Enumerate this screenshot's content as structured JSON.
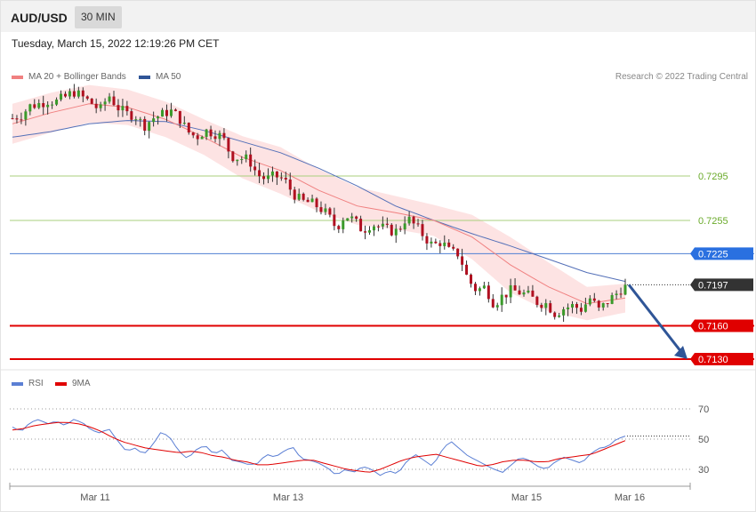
{
  "header": {
    "pair": "AUD/USD",
    "timeframe": "30 MIN",
    "timestamp": "Tuesday, March 15, 2022 12:19:26 PM CET"
  },
  "legend": {
    "ma20": {
      "label": "MA 20 + Bollinger Bands",
      "color": "#f08080"
    },
    "ma50": {
      "label": "MA 50",
      "color": "#2f5597"
    },
    "credit": "Research © 2022 Trading Central"
  },
  "rsi_legend": {
    "rsi": {
      "label": "RSI",
      "color": "#5b7fd4"
    },
    "ma9": {
      "label": "9MA",
      "color": "#e00000"
    }
  },
  "chart_data": [
    {
      "type": "candlestick",
      "ylim": [
        0.712,
        0.7395
      ],
      "x_labels": [
        "Mar 11",
        "Mar 13",
        "Mar 15",
        "Mar 16"
      ],
      "levels": [
        {
          "label": "0.7295",
          "value": 0.7295,
          "style": "green-thin"
        },
        {
          "label": "0.7255",
          "value": 0.7255,
          "style": "green-thin"
        },
        {
          "label": "0.7225",
          "value": 0.7225,
          "style": "blue"
        },
        {
          "label": "0.7197",
          "value": 0.7197,
          "style": "current"
        },
        {
          "label": "0.7160",
          "value": 0.716,
          "style": "red"
        },
        {
          "label": "0.7130",
          "value": 0.713,
          "style": "red"
        }
      ],
      "close_path": [
        0.7347,
        0.735,
        0.7358,
        0.736,
        0.7363,
        0.7362,
        0.7366,
        0.7371,
        0.7366,
        0.7361,
        0.7354,
        0.7368,
        0.7357,
        0.7351,
        0.735,
        0.734,
        0.7347,
        0.735,
        0.7354,
        0.7348,
        0.7335,
        0.733,
        0.7336,
        0.7334,
        0.733,
        0.7313,
        0.7311,
        0.731,
        0.7296,
        0.7292,
        0.7295,
        0.7292,
        0.728,
        0.7272,
        0.7271,
        0.7267,
        0.726,
        0.7248,
        0.726,
        0.7255,
        0.7246,
        0.7252,
        0.7249,
        0.7246,
        0.7245,
        0.7258,
        0.725,
        0.7241,
        0.7232,
        0.7236,
        0.7226,
        0.7225,
        0.7202,
        0.7192,
        0.7195,
        0.718,
        0.7187,
        0.7192,
        0.719,
        0.7187,
        0.7181,
        0.718,
        0.7171,
        0.7176,
        0.7178,
        0.7175,
        0.7185,
        0.7174,
        0.7182,
        0.7189,
        0.7197
      ],
      "ma20_path": [
        0.7342,
        0.7352,
        0.736,
        0.7357,
        0.7346,
        0.733,
        0.7312,
        0.73,
        0.7282,
        0.7268,
        0.7262,
        0.7255,
        0.724,
        0.7215,
        0.7195,
        0.718,
        0.7185
      ],
      "ma50_path": [
        0.733,
        0.7335,
        0.7342,
        0.7345,
        0.7344,
        0.7336,
        0.7326,
        0.7316,
        0.7302,
        0.7286,
        0.7268,
        0.7255,
        0.7243,
        0.7232,
        0.722,
        0.7208,
        0.72
      ],
      "bb_width_path": [
        0.0018,
        0.0018,
        0.0017,
        0.0016,
        0.0016,
        0.0016,
        0.0019,
        0.0021,
        0.0019,
        0.0017,
        0.0015,
        0.0014,
        0.002,
        0.0025,
        0.0022,
        0.0015,
        0.0013
      ],
      "projection": {
        "from": 0.7197,
        "to": 0.713
      }
    },
    {
      "type": "line",
      "ylim": [
        20,
        80
      ],
      "y_ticks": [
        {
          "label": "70",
          "value": 70
        },
        {
          "label": "50",
          "value": 50
        },
        {
          "label": "30",
          "value": 30
        }
      ],
      "series": [
        {
          "name": "RSI",
          "color": "#5b7fd4",
          "values": [
            58,
            55,
            61,
            63,
            60,
            62,
            59,
            63,
            61,
            56,
            54,
            57,
            49,
            42,
            44,
            40,
            46,
            55,
            51,
            42,
            37,
            43,
            46,
            40,
            43,
            36,
            35,
            33,
            34,
            40,
            38,
            42,
            45,
            37,
            36,
            34,
            31,
            26,
            30,
            28,
            32,
            30,
            26,
            29,
            27,
            35,
            40,
            36,
            32,
            42,
            49,
            44,
            39,
            36,
            33,
            30,
            28,
            33,
            38,
            36,
            32,
            30,
            35,
            38,
            36,
            34,
            40,
            44,
            45,
            50,
            52
          ]
        },
        {
          "name": "9MA",
          "color": "#e00000",
          "values": [
            56,
            57,
            59,
            60,
            61,
            61,
            60,
            58,
            55,
            51,
            48,
            46,
            44,
            43,
            42,
            41,
            42,
            41,
            39,
            38,
            36,
            35,
            33,
            33,
            34,
            35,
            36,
            36,
            34,
            32,
            30,
            29,
            28,
            30,
            33,
            36,
            38,
            39,
            40,
            38,
            36,
            34,
            32,
            33,
            35,
            36,
            36,
            35,
            35,
            37,
            38,
            39,
            40,
            43,
            46,
            49
          ]
        }
      ]
    }
  ]
}
